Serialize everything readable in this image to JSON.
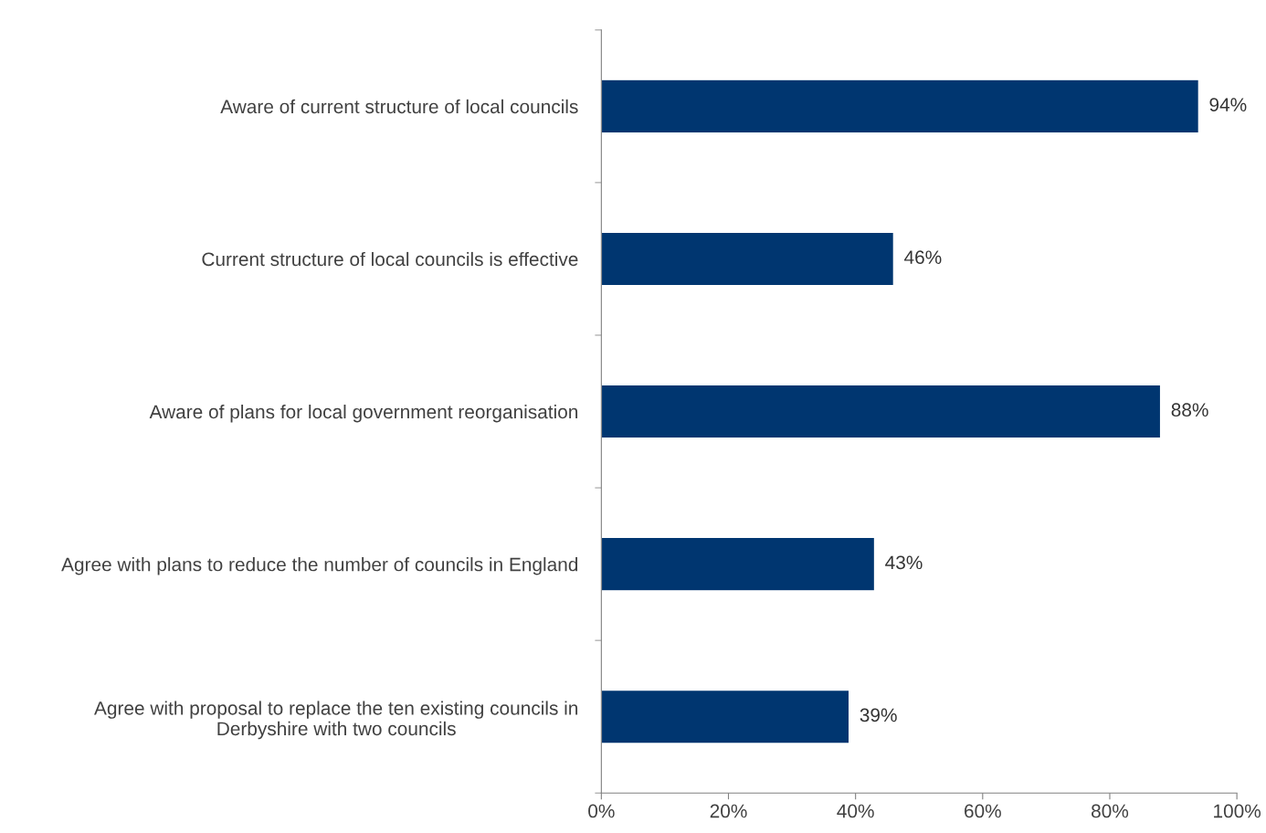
{
  "chart_data": {
    "type": "bar",
    "orientation": "horizontal",
    "categories": [
      "Aware of current structure of local councils",
      "Current structure of local councils is effective",
      "Aware of plans for local government reorganisation",
      "Agree with plans to reduce the number of councils in England",
      "Agree with proposal to replace the ten existing councils in\nDerbyshire with two councils"
    ],
    "values": [
      94,
      46,
      88,
      43,
      39
    ],
    "value_labels": [
      "94%",
      "46%",
      "88%",
      "43%",
      "39%"
    ],
    "color": "#003670",
    "xlim": [
      0,
      100
    ],
    "xticks": [
      {
        "value": 0,
        "label": "0%"
      },
      {
        "value": 20,
        "label": "20%"
      },
      {
        "value": 40,
        "label": "40%"
      },
      {
        "value": 60,
        "label": "60%"
      },
      {
        "value": 80,
        "label": "80%"
      },
      {
        "value": 100,
        "label": "100%"
      }
    ],
    "grid": false,
    "legend": false
  }
}
